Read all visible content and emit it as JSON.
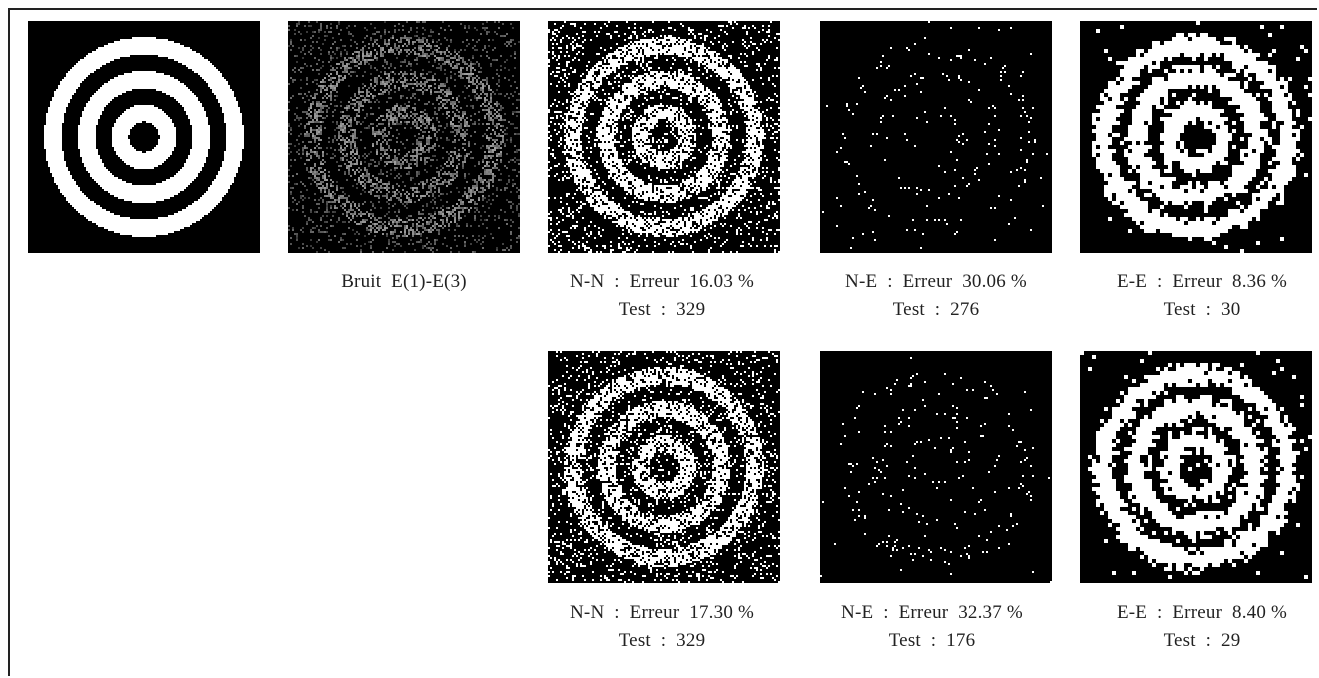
{
  "figure": {
    "captions": {
      "noise": "Bruit  E(1)-E(3)",
      "r1_nn_err": "N-N  :  Erreur  16.03 %",
      "r1_nn_test": "Test  :  329",
      "r1_ne_err": "N-E  :  Erreur  30.06 %",
      "r1_ne_test": "Test  :  276",
      "r1_ee_err": "E-E  :  Erreur  8.36 %",
      "r1_ee_test": "Test  :  30",
      "r2_nn_err": "N-N  :  Erreur  17.30 %",
      "r2_nn_test": "Test  :  329",
      "r2_ne_err": "N-E  :  Erreur  32.37 %",
      "r2_ne_test": "Test  :  176",
      "r2_ee_err": "E-E  :  Erreur  8.40 %",
      "r2_ee_test": "Test  :  29"
    }
  }
}
